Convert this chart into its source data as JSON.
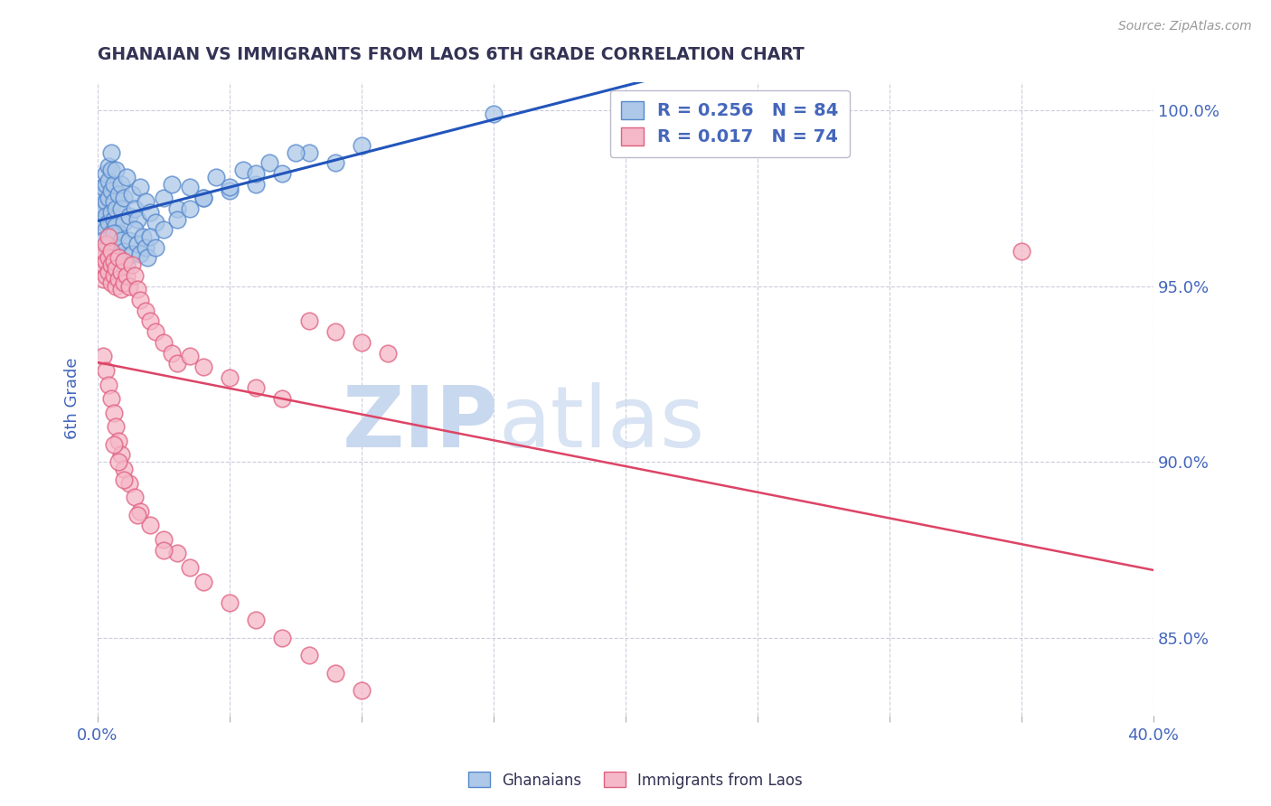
{
  "title": "GHANAIAN VS IMMIGRANTS FROM LAOS 6TH GRADE CORRELATION CHART",
  "source": "Source: ZipAtlas.com",
  "ylabel": "6th Grade",
  "xlim": [
    0.0,
    0.4
  ],
  "ylim": [
    0.828,
    1.008
  ],
  "blue_R": "0.256",
  "blue_N": "84",
  "pink_R": "0.017",
  "pink_N": "74",
  "legend_entries": [
    "Ghanaians",
    "Immigrants from Laos"
  ],
  "blue_color": "#adc8e8",
  "blue_edge": "#5588cc",
  "pink_color": "#f5b8c8",
  "pink_edge": "#e06080",
  "blue_line_color": "#2255bb",
  "pink_line_color": "#dd4466",
  "watermark_zip": "ZIP",
  "watermark_atlas": "atlas",
  "watermark_color_zip": "#c8d8ee",
  "watermark_color_atlas": "#c8d8ee",
  "title_color": "#333355",
  "axis_label_color": "#4466bb",
  "tick_color": "#4466bb",
  "grid_color": "#ccccdd",
  "legend_box_edge": "#bbbbcc",
  "ytick_vals": [
    0.85,
    0.9,
    0.95,
    1.0
  ],
  "ytick_labels": [
    "85.0%",
    "90.0%",
    "95.0%",
    "100.0%"
  ],
  "xtick_vals": [
    0.0,
    0.05,
    0.1,
    0.15,
    0.2,
    0.25,
    0.3,
    0.35,
    0.4
  ],
  "blue_x": [
    0.001,
    0.001,
    0.001,
    0.002,
    0.002,
    0.002,
    0.002,
    0.003,
    0.003,
    0.003,
    0.003,
    0.003,
    0.004,
    0.004,
    0.004,
    0.004,
    0.005,
    0.005,
    0.005,
    0.005,
    0.005,
    0.006,
    0.006,
    0.006,
    0.007,
    0.007,
    0.007,
    0.008,
    0.008,
    0.009,
    0.009,
    0.01,
    0.01,
    0.011,
    0.012,
    0.013,
    0.014,
    0.015,
    0.016,
    0.018,
    0.02,
    0.022,
    0.025,
    0.028,
    0.03,
    0.035,
    0.04,
    0.045,
    0.05,
    0.055,
    0.06,
    0.065,
    0.07,
    0.08,
    0.09,
    0.1,
    0.002,
    0.003,
    0.004,
    0.005,
    0.006,
    0.007,
    0.008,
    0.009,
    0.01,
    0.011,
    0.012,
    0.013,
    0.014,
    0.015,
    0.016,
    0.017,
    0.018,
    0.019,
    0.02,
    0.022,
    0.025,
    0.03,
    0.035,
    0.04,
    0.05,
    0.06,
    0.075,
    0.15
  ],
  "blue_y": [
    0.971,
    0.973,
    0.975,
    0.976,
    0.978,
    0.968,
    0.972,
    0.979,
    0.974,
    0.97,
    0.982,
    0.966,
    0.975,
    0.98,
    0.968,
    0.984,
    0.977,
    0.971,
    0.983,
    0.965,
    0.988,
    0.974,
    0.969,
    0.979,
    0.972,
    0.967,
    0.983,
    0.976,
    0.965,
    0.972,
    0.979,
    0.968,
    0.975,
    0.981,
    0.97,
    0.976,
    0.972,
    0.969,
    0.978,
    0.974,
    0.971,
    0.968,
    0.975,
    0.979,
    0.972,
    0.978,
    0.975,
    0.981,
    0.977,
    0.983,
    0.979,
    0.985,
    0.982,
    0.988,
    0.985,
    0.99,
    0.963,
    0.959,
    0.962,
    0.958,
    0.965,
    0.961,
    0.958,
    0.963,
    0.96,
    0.956,
    0.963,
    0.959,
    0.966,
    0.962,
    0.959,
    0.964,
    0.961,
    0.958,
    0.964,
    0.961,
    0.966,
    0.969,
    0.972,
    0.975,
    0.978,
    0.982,
    0.988,
    0.999
  ],
  "pink_x": [
    0.001,
    0.001,
    0.002,
    0.002,
    0.002,
    0.003,
    0.003,
    0.003,
    0.004,
    0.004,
    0.004,
    0.005,
    0.005,
    0.005,
    0.006,
    0.006,
    0.007,
    0.007,
    0.008,
    0.008,
    0.009,
    0.009,
    0.01,
    0.01,
    0.011,
    0.012,
    0.013,
    0.014,
    0.015,
    0.016,
    0.018,
    0.02,
    0.022,
    0.025,
    0.028,
    0.03,
    0.035,
    0.04,
    0.05,
    0.06,
    0.07,
    0.08,
    0.09,
    0.1,
    0.11,
    0.002,
    0.003,
    0.004,
    0.005,
    0.006,
    0.007,
    0.008,
    0.009,
    0.01,
    0.012,
    0.014,
    0.016,
    0.02,
    0.025,
    0.03,
    0.035,
    0.04,
    0.05,
    0.06,
    0.07,
    0.08,
    0.09,
    0.1,
    0.006,
    0.008,
    0.01,
    0.015,
    0.025,
    0.35
  ],
  "pink_y": [
    0.955,
    0.958,
    0.952,
    0.956,
    0.96,
    0.953,
    0.957,
    0.962,
    0.954,
    0.958,
    0.964,
    0.951,
    0.956,
    0.96,
    0.953,
    0.957,
    0.95,
    0.955,
    0.952,
    0.958,
    0.949,
    0.954,
    0.951,
    0.957,
    0.953,
    0.95,
    0.956,
    0.953,
    0.949,
    0.946,
    0.943,
    0.94,
    0.937,
    0.934,
    0.931,
    0.928,
    0.93,
    0.927,
    0.924,
    0.921,
    0.918,
    0.94,
    0.937,
    0.934,
    0.931,
    0.93,
    0.926,
    0.922,
    0.918,
    0.914,
    0.91,
    0.906,
    0.902,
    0.898,
    0.894,
    0.89,
    0.886,
    0.882,
    0.878,
    0.874,
    0.87,
    0.866,
    0.86,
    0.855,
    0.85,
    0.845,
    0.84,
    0.835,
    0.905,
    0.9,
    0.895,
    0.885,
    0.875,
    0.96
  ]
}
